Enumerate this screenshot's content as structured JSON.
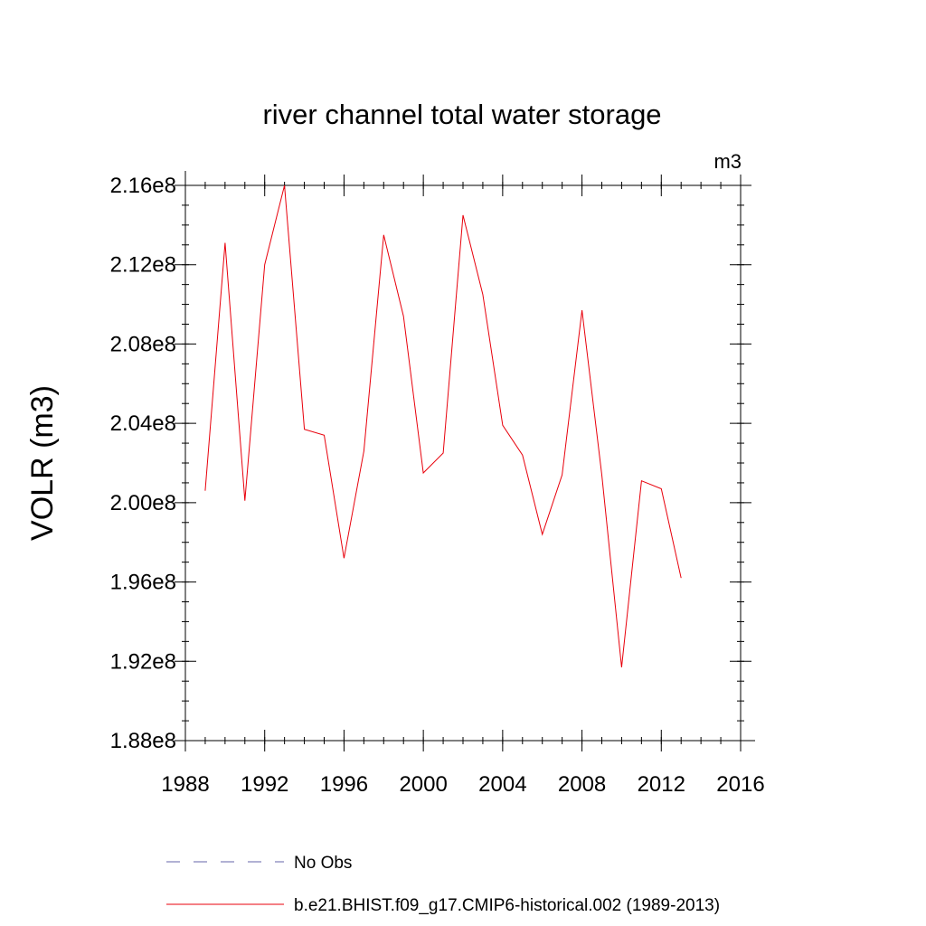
{
  "chart_data": {
    "type": "line",
    "title": "river channel total water storage",
    "units": "m3",
    "ylabel": "VOLR  (m3)",
    "xlabel": "",
    "xlim": [
      1988,
      2016
    ],
    "ylim": [
      188000000.0,
      216000000.0
    ],
    "x_ticks": [
      1988,
      1992,
      1996,
      2000,
      2004,
      2008,
      2012,
      2016
    ],
    "x_tick_labels": [
      "1988",
      "1992",
      "1996",
      "2000",
      "2004",
      "2008",
      "2012",
      "2016"
    ],
    "y_ticks": [
      188000000.0,
      192000000.0,
      196000000.0,
      200000000.0,
      204000000.0,
      208000000.0,
      212000000.0,
      216000000.0
    ],
    "y_tick_labels": [
      "1.88e8",
      "1.92e8",
      "1.96e8",
      "2.00e8",
      "2.04e8",
      "2.08e8",
      "2.12e8",
      "2.16e8"
    ],
    "grid": false,
    "series": [
      {
        "name": "b.e21.BHIST.f09_g17.CMIP6-historical.002 (1989-2013)",
        "color": "#e8000b",
        "style": "solid",
        "x": [
          1989,
          1990,
          1991,
          1992,
          1993,
          1994,
          1995,
          1996,
          1997,
          1998,
          1999,
          2000,
          2001,
          2002,
          2003,
          2004,
          2005,
          2006,
          2007,
          2008,
          2009,
          2010,
          2011,
          2012,
          2013
        ],
        "values": [
          200600000.0,
          213100000.0,
          200100000.0,
          212000000.0,
          216000000.0,
          203700000.0,
          203400000.0,
          197200000.0,
          202600000.0,
          213500000.0,
          209400000.0,
          201500000.0,
          202500000.0,
          214500000.0,
          210500000.0,
          203900000.0,
          202400000.0,
          198400000.0,
          201400000.0,
          209700000.0,
          201400000.0,
          191700000.0,
          201100000.0,
          200700000.0,
          196200000.0
        ]
      }
    ],
    "legend": {
      "placement": "bottom",
      "items": [
        {
          "label": "No Obs",
          "color": "#6666aa",
          "style": "dashed"
        },
        {
          "label": "b.e21.BHIST.f09_g17.CMIP6-historical.002 (1989-2013)",
          "color": "#e8000b",
          "style": "solid"
        }
      ]
    }
  }
}
